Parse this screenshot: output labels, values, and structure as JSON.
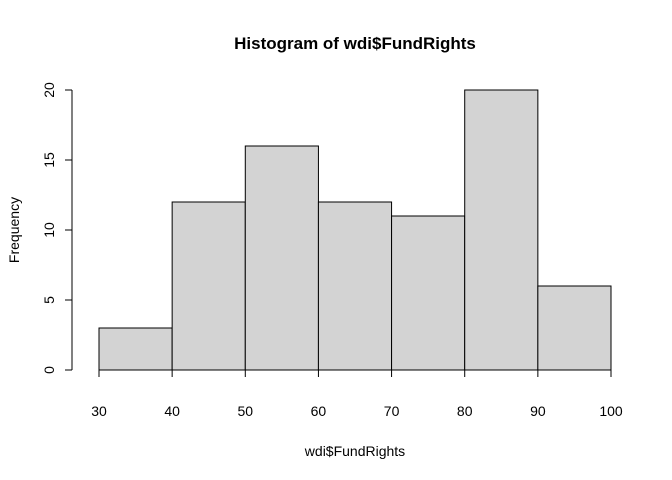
{
  "chart_data": {
    "type": "bar",
    "title": "Histogram of wdi$FundRights",
    "xlabel": "wdi$FundRights",
    "ylabel": "Frequency",
    "bins": [
      {
        "start": 30,
        "end": 40,
        "count": 3
      },
      {
        "start": 40,
        "end": 50,
        "count": 12
      },
      {
        "start": 50,
        "end": 60,
        "count": 16
      },
      {
        "start": 60,
        "end": 70,
        "count": 12
      },
      {
        "start": 70,
        "end": 80,
        "count": 11
      },
      {
        "start": 80,
        "end": 90,
        "count": 20
      },
      {
        "start": 90,
        "end": 100,
        "count": 6
      }
    ],
    "xlim": [
      30,
      100
    ],
    "ylim": [
      0,
      20
    ],
    "x_ticks": [
      "30",
      "40",
      "50",
      "60",
      "70",
      "80",
      "90",
      "100"
    ],
    "y_ticks": [
      "0",
      "5",
      "10",
      "15",
      "20"
    ],
    "bar_color": "#d3d3d3",
    "border_color": "#000000",
    "grid": false
  }
}
